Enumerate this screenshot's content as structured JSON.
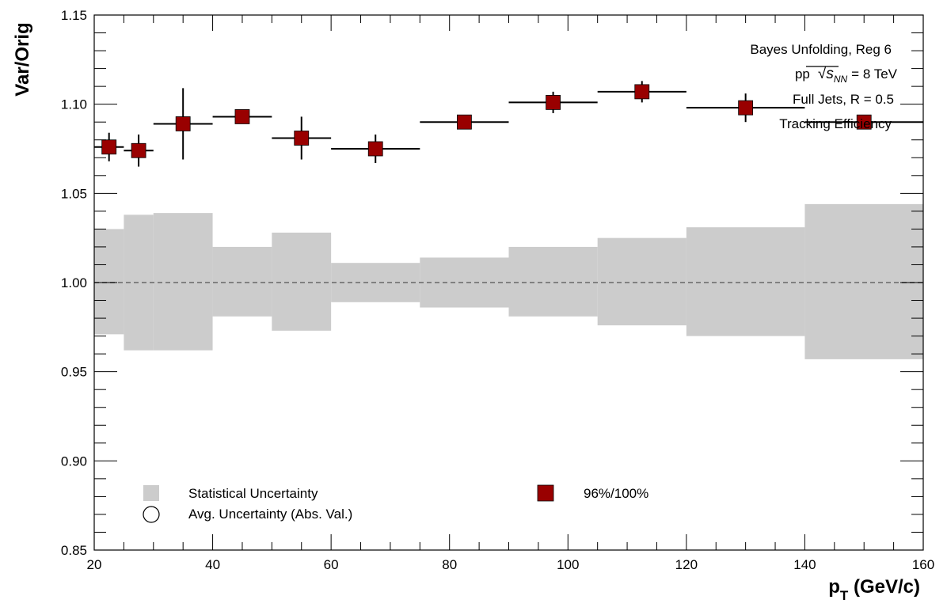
{
  "chart_data": {
    "type": "scatter",
    "title": "",
    "xlabel": "p",
    "xlabel_sub": "T",
    "xlabel_rest": " (GeV/c)",
    "ylabel": "Var/Orig",
    "xlim": [
      20,
      160
    ],
    "ylim": [
      0.85,
      1.15
    ],
    "x_ticks": [
      20,
      40,
      60,
      80,
      100,
      120,
      140,
      160
    ],
    "y_ticks": [
      0.85,
      0.9,
      0.95,
      1.0,
      1.05,
      1.1,
      1.15
    ],
    "y_tick_labels": [
      "0.85",
      "0.90",
      "0.95",
      "1.00",
      "1.05",
      "1.10",
      "1.15"
    ],
    "grid": false,
    "reference_line": 1.0,
    "annotations": {
      "line1": "Bayes Unfolding, Reg 6",
      "line2_pre": "pp",
      "line2_s": "s",
      "line2_sub": "NN",
      "line2_post": "= 8 TeV",
      "line3": "Full Jets, R = 0.5",
      "line4": "Tracking Efficiency"
    },
    "legend": {
      "placement": "bottom",
      "stat_label": "Statistical Uncertainty",
      "avg_label": "Avg. Uncertainty (Abs. Val.)",
      "series_label": "96%/100%"
    },
    "colors": {
      "band": "#cccccc",
      "marker": "#990000",
      "reference": "#808080"
    },
    "stat_band": [
      {
        "x0": 20,
        "x1": 25,
        "low": 0.971,
        "high": 1.03
      },
      {
        "x0": 25,
        "x1": 30,
        "low": 0.962,
        "high": 1.038
      },
      {
        "x0": 30,
        "x1": 40,
        "low": 0.962,
        "high": 1.039
      },
      {
        "x0": 40,
        "x1": 50,
        "low": 0.981,
        "high": 1.02
      },
      {
        "x0": 50,
        "x1": 60,
        "low": 0.973,
        "high": 1.028
      },
      {
        "x0": 60,
        "x1": 75,
        "low": 0.989,
        "high": 1.011
      },
      {
        "x0": 75,
        "x1": 90,
        "low": 0.986,
        "high": 1.014
      },
      {
        "x0": 90,
        "x1": 105,
        "low": 0.981,
        "high": 1.02
      },
      {
        "x0": 105,
        "x1": 120,
        "low": 0.976,
        "high": 1.025
      },
      {
        "x0": 120,
        "x1": 140,
        "low": 0.97,
        "high": 1.031
      },
      {
        "x0": 140,
        "x1": 160,
        "low": 0.957,
        "high": 1.044
      }
    ],
    "series": [
      {
        "name": "96%/100%",
        "points": [
          {
            "x": 22.5,
            "xlow": 20,
            "xhigh": 25,
            "y": 1.076,
            "err": 0.008
          },
          {
            "x": 27.5,
            "xlow": 25,
            "xhigh": 30,
            "y": 1.074,
            "err": 0.009
          },
          {
            "x": 35,
            "xlow": 30,
            "xhigh": 40,
            "y": 1.089,
            "err": 0.02
          },
          {
            "x": 45,
            "xlow": 40,
            "xhigh": 50,
            "y": 1.093,
            "err": 0.003
          },
          {
            "x": 55,
            "xlow": 50,
            "xhigh": 60,
            "y": 1.081,
            "err": 0.012
          },
          {
            "x": 67.5,
            "xlow": 60,
            "xhigh": 75,
            "y": 1.075,
            "err": 0.008
          },
          {
            "x": 82.5,
            "xlow": 75,
            "xhigh": 90,
            "y": 1.09,
            "err": 0.002
          },
          {
            "x": 97.5,
            "xlow": 90,
            "xhigh": 105,
            "y": 1.101,
            "err": 0.006
          },
          {
            "x": 112.5,
            "xlow": 105,
            "xhigh": 120,
            "y": 1.107,
            "err": 0.006
          },
          {
            "x": 130,
            "xlow": 120,
            "xhigh": 140,
            "y": 1.098,
            "err": 0.008
          },
          {
            "x": 150,
            "xlow": 140,
            "xhigh": 160,
            "y": 1.09,
            "err": 0.003
          }
        ]
      }
    ]
  }
}
